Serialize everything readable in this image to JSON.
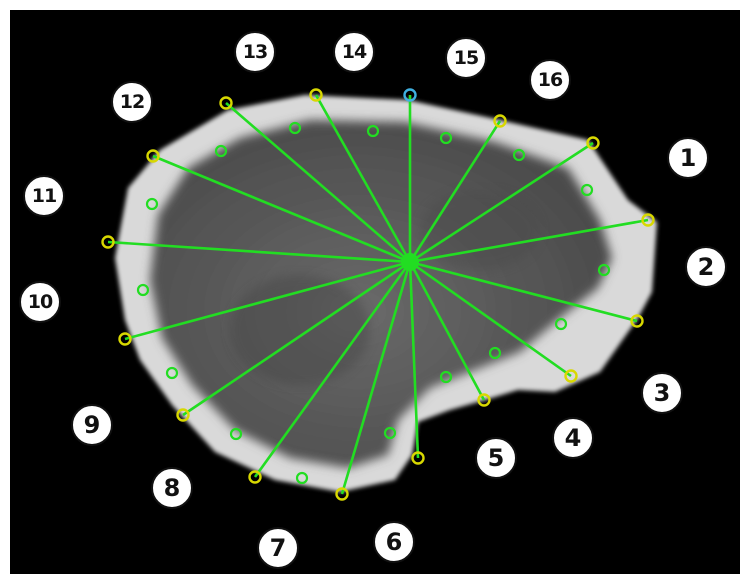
{
  "image": {
    "background_color": "#000000",
    "object": "grey-white irregular cross-section with darker interior",
    "ray_color": "#22dd22",
    "boundary_marker_color": "#d8d800",
    "start_marker_color": "#3fb0e0",
    "mid_marker_color": "#22dd22"
  },
  "labels": [
    "1",
    "2",
    "3",
    "4",
    "5",
    "6",
    "7",
    "8",
    "9",
    "10",
    "11",
    "12",
    "13",
    "14",
    "15",
    "16"
  ]
}
